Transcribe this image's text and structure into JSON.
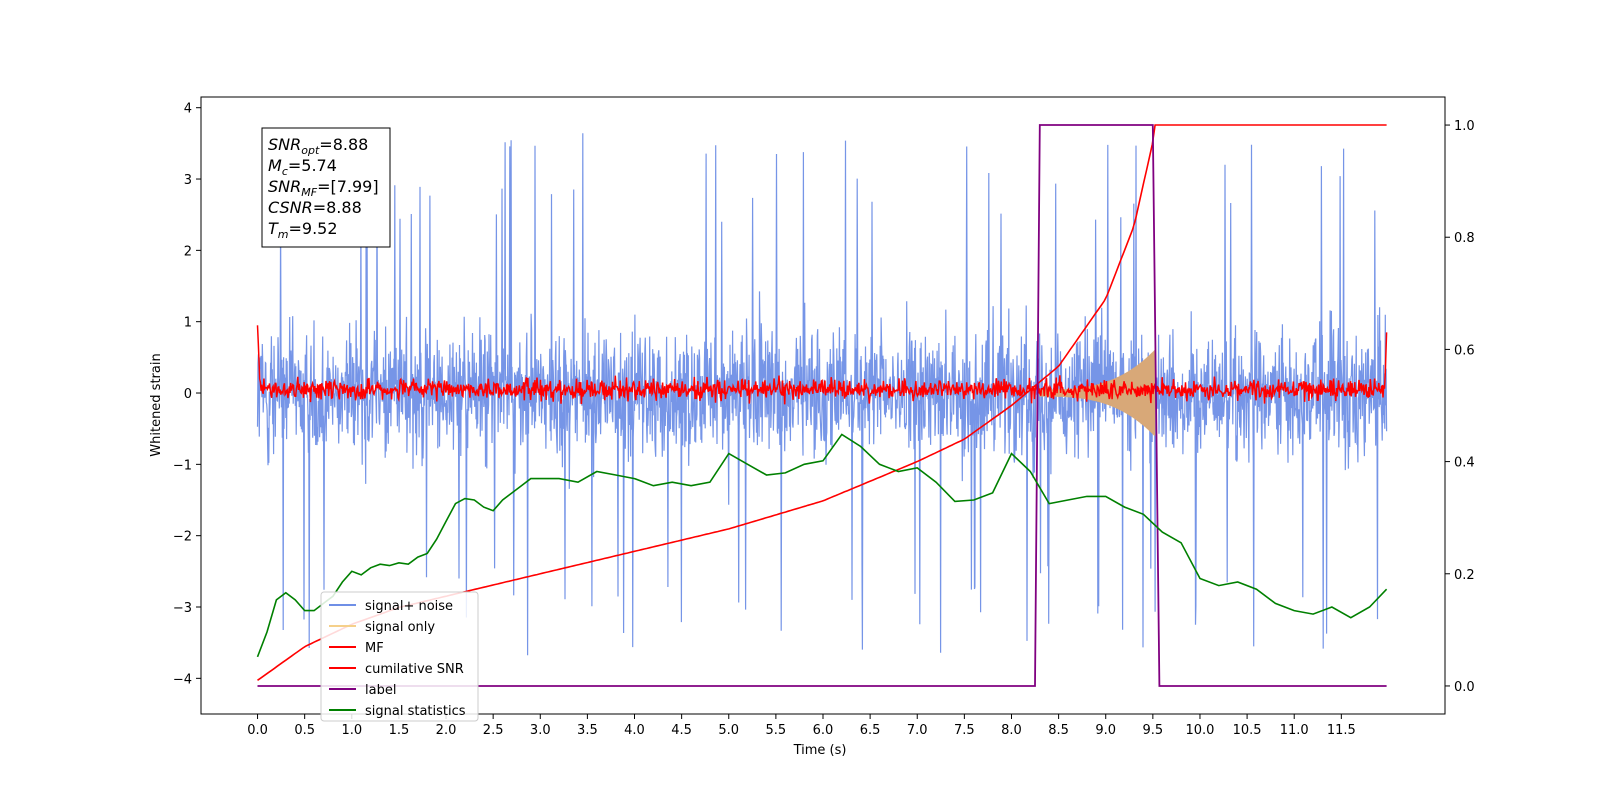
{
  "chart_data": {
    "type": "line",
    "xlabel": "Time (s)",
    "ylabel": "Whitened strain",
    "xlim": [
      -0.6,
      12.6
    ],
    "ylim_left": [
      -4.5,
      4.15
    ],
    "ylim_right": [
      -0.05,
      1.05
    ],
    "x_ticks": [
      0.0,
      0.5,
      1.0,
      1.5,
      2.0,
      2.5,
      3.0,
      3.5,
      4.0,
      4.5,
      5.0,
      5.5,
      6.0,
      6.5,
      7.0,
      7.5,
      8.0,
      8.5,
      9.0,
      9.5,
      10.0,
      10.5,
      11.0,
      11.5
    ],
    "x_tick_labels": [
      "0.0",
      "0.5",
      "1.0",
      "1.5",
      "2.0",
      "2.5",
      "3.0",
      "3.5",
      "4.0",
      "4.5",
      "5.0",
      "5.5",
      "6.0",
      "6.5",
      "7.0",
      "7.5",
      "8.0",
      "8.5",
      "9.0",
      "9.5",
      "10.0",
      "10.5",
      "11.0",
      "11.5"
    ],
    "y_left_ticks": [
      -4,
      -3,
      -2,
      -1,
      0,
      1,
      2,
      3,
      4
    ],
    "y_left_tick_labels": [
      "−4",
      "−3",
      "−2",
      "−1",
      "0",
      "1",
      "2",
      "3",
      "4"
    ],
    "y_right_ticks": [
      0.0,
      0.2,
      0.4,
      0.6,
      0.8,
      1.0
    ],
    "y_right_tick_labels": [
      "0.0",
      "0.2",
      "0.4",
      "0.6",
      "0.8",
      "1.0"
    ],
    "legend_position": "lower-left",
    "legend": [
      {
        "label": "signal+ noise",
        "color": "#6f8fe6"
      },
      {
        "label": "signal only",
        "color": "#f5d08a"
      },
      {
        "label": "MF",
        "color": "#ff0000"
      },
      {
        "label": "cumilative SNR",
        "color": "#ff0000"
      },
      {
        "label": "label",
        "color": "#800080"
      },
      {
        "label": "signal statistics",
        "color": "#008000"
      }
    ],
    "stats_box": [
      {
        "main": "SNR",
        "sub": "opt",
        "value": "=8.88"
      },
      {
        "main": "M",
        "sub": "c",
        "value": "=5.74"
      },
      {
        "main": "SNR",
        "sub": "MF",
        "value": "=[7.99]"
      },
      {
        "main": "CSNR",
        "sub": "",
        "value": "=8.88"
      },
      {
        "main": "T",
        "sub": "m",
        "value": "=9.52"
      }
    ],
    "series": {
      "signal_noise": {
        "x_start": 0.0,
        "x_end": 11.98,
        "approx_range": [
          -4.1,
          3.8
        ],
        "color": "#6f8fe6"
      },
      "signal_only": {
        "x_start": 8.3,
        "x_end": 9.52,
        "amplitude_start": 0.05,
        "amplitude_end": 0.6,
        "color": "#d8a878"
      },
      "mf": {
        "x_start": 0.0,
        "x_end": 11.98,
        "approx_range": [
          -0.2,
          0.4
        ],
        "color": "#ff0000"
      },
      "cumulative_snr": {
        "axis": "right",
        "x": [
          0.0,
          0.5,
          1.0,
          1.5,
          2.0,
          3.0,
          4.0,
          5.0,
          6.0,
          7.0,
          7.5,
          8.0,
          8.5,
          9.0,
          9.3,
          9.5,
          9.52,
          11.98
        ],
        "y": [
          0.01,
          0.07,
          0.11,
          0.14,
          0.16,
          0.2,
          0.24,
          0.28,
          0.33,
          0.4,
          0.44,
          0.5,
          0.57,
          0.69,
          0.82,
          0.97,
          1.0,
          1.0
        ],
        "color": "#ff0000"
      },
      "label": {
        "axis": "right",
        "x": [
          0.0,
          8.25,
          8.3,
          9.5,
          9.57,
          11.98
        ],
        "y": [
          0.0,
          0.0,
          1.0,
          1.0,
          0.0,
          0.0
        ],
        "color": "#800080"
      },
      "signal_statistics": {
        "axis": "left",
        "x": [
          0.0,
          0.1,
          0.2,
          0.3,
          0.4,
          0.5,
          0.6,
          0.7,
          0.8,
          0.9,
          1.0,
          1.1,
          1.2,
          1.3,
          1.4,
          1.5,
          1.6,
          1.7,
          1.8,
          1.9,
          2.0,
          2.1,
          2.2,
          2.3,
          2.4,
          2.5,
          2.6,
          2.7,
          2.8,
          2.9,
          3.0,
          3.2,
          3.4,
          3.6,
          3.8,
          4.0,
          4.2,
          4.4,
          4.6,
          4.8,
          5.0,
          5.2,
          5.4,
          5.6,
          5.8,
          6.0,
          6.2,
          6.4,
          6.6,
          6.8,
          7.0,
          7.2,
          7.4,
          7.6,
          7.8,
          8.0,
          8.2,
          8.4,
          8.6,
          8.8,
          9.0,
          9.2,
          9.4,
          9.6,
          9.8,
          10.0,
          10.2,
          10.4,
          10.6,
          10.8,
          11.0,
          11.2,
          11.4,
          11.6,
          11.8,
          11.98
        ],
        "y": [
          -3.7,
          -3.35,
          -2.9,
          -2.8,
          -2.9,
          -3.05,
          -3.05,
          -2.95,
          -2.85,
          -2.65,
          -2.5,
          -2.55,
          -2.45,
          -2.4,
          -2.42,
          -2.38,
          -2.4,
          -2.3,
          -2.25,
          -2.05,
          -1.8,
          -1.55,
          -1.48,
          -1.5,
          -1.6,
          -1.65,
          -1.5,
          -1.4,
          -1.3,
          -1.2,
          -1.2,
          -1.2,
          -1.25,
          -1.1,
          -1.15,
          -1.2,
          -1.3,
          -1.25,
          -1.3,
          -1.25,
          -0.85,
          -1.0,
          -1.15,
          -1.12,
          -1.0,
          -0.95,
          -0.58,
          -0.75,
          -1.0,
          -1.1,
          -1.05,
          -1.25,
          -1.52,
          -1.5,
          -1.4,
          -0.85,
          -1.1,
          -1.55,
          -1.5,
          -1.45,
          -1.45,
          -1.6,
          -1.7,
          -1.95,
          -2.1,
          -2.6,
          -2.7,
          -2.65,
          -2.75,
          -2.95,
          -3.05,
          -3.1,
          -3.0,
          -3.15,
          -3.0,
          -2.75
        ],
        "color": "#008000"
      }
    }
  }
}
